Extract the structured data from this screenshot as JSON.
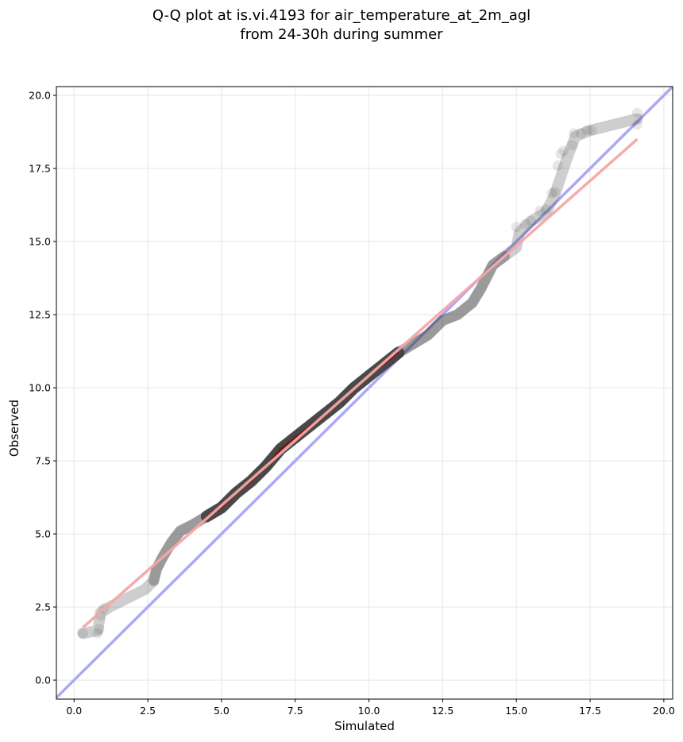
{
  "chart_data": {
    "type": "scatter",
    "title_lines": [
      "Q-Q plot at is.vi.4193 for air_temperature_at_2m_agl",
      "from 24-30h during summer"
    ],
    "xlabel": "Simulated",
    "ylabel": "Observed",
    "xlim": [
      -0.6,
      20.3
    ],
    "ylim": [
      -0.65,
      20.3
    ],
    "xticks": [
      0.0,
      2.5,
      5.0,
      7.5,
      10.0,
      12.5,
      15.0,
      17.5,
      20.0
    ],
    "yticks": [
      0.0,
      2.5,
      5.0,
      7.5,
      10.0,
      12.5,
      15.0,
      17.5,
      20.0
    ],
    "xtick_labels": [
      "0.0",
      "2.5",
      "5.0",
      "7.5",
      "10.0",
      "12.5",
      "15.0",
      "17.5",
      "20.0"
    ],
    "ytick_labels": [
      "0.0",
      "2.5",
      "5.0",
      "7.5",
      "10.0",
      "12.5",
      "15.0",
      "17.5",
      "20.0"
    ],
    "grid": true,
    "reference_line": {
      "x": [
        -0.6,
        20.3
      ],
      "y": [
        -0.6,
        20.3
      ],
      "color": "#a9a9f5"
    },
    "fit_line": {
      "x": [
        0.3,
        19.1
      ],
      "y": [
        1.8,
        18.5
      ],
      "color": "#f4a6a6"
    },
    "quantile_curve": {
      "x": [
        0.3,
        0.8,
        0.9,
        1.2,
        1.6,
        2.0,
        2.4,
        2.7,
        2.8,
        3.0,
        3.3,
        3.6,
        4.0,
        4.5,
        5.0,
        5.5,
        6.0,
        6.5,
        7.0,
        7.5,
        8.0,
        8.5,
        9.0,
        9.5,
        10.0,
        10.5,
        11.0,
        11.5,
        12.0,
        12.5,
        13.0,
        13.5,
        13.8,
        14.2,
        14.6,
        15.0,
        15.1,
        15.5,
        16.0,
        16.3,
        16.7,
        17.0,
        17.5,
        19.1
      ],
      "y": [
        1.6,
        1.7,
        2.3,
        2.5,
        2.7,
        2.9,
        3.1,
        3.4,
        3.8,
        4.2,
        4.7,
        5.1,
        5.3,
        5.6,
        5.9,
        6.4,
        6.8,
        7.3,
        7.9,
        8.3,
        8.7,
        9.1,
        9.5,
        10.0,
        10.4,
        10.8,
        11.2,
        11.5,
        11.8,
        12.3,
        12.5,
        12.9,
        13.4,
        14.2,
        14.5,
        14.8,
        15.3,
        15.7,
        16.0,
        16.6,
        17.8,
        18.6,
        18.8,
        19.2
      ]
    },
    "points": [
      {
        "x": 0.3,
        "y": 1.6,
        "opacity": 0.12
      },
      {
        "x": 0.8,
        "y": 1.6,
        "opacity": 0.12
      },
      {
        "x": 0.85,
        "y": 1.75,
        "opacity": 0.12
      },
      {
        "x": 0.9,
        "y": 2.2,
        "opacity": 0.12
      },
      {
        "x": 1.0,
        "y": 2.45,
        "opacity": 0.12
      },
      {
        "x": 15.0,
        "y": 15.5,
        "opacity": 0.12
      },
      {
        "x": 15.3,
        "y": 15.6,
        "opacity": 0.12
      },
      {
        "x": 15.5,
        "y": 15.7,
        "opacity": 0.12
      },
      {
        "x": 15.8,
        "y": 16.05,
        "opacity": 0.12
      },
      {
        "x": 16.0,
        "y": 16.1,
        "opacity": 0.12
      },
      {
        "x": 16.2,
        "y": 16.65,
        "opacity": 0.12
      },
      {
        "x": 16.3,
        "y": 16.7,
        "opacity": 0.12
      },
      {
        "x": 16.4,
        "y": 17.6,
        "opacity": 0.12
      },
      {
        "x": 16.5,
        "y": 18.0,
        "opacity": 0.12
      },
      {
        "x": 16.6,
        "y": 18.1,
        "opacity": 0.12
      },
      {
        "x": 16.9,
        "y": 18.3,
        "opacity": 0.12
      },
      {
        "x": 16.95,
        "y": 18.7,
        "opacity": 0.12
      },
      {
        "x": 17.2,
        "y": 18.7,
        "opacity": 0.12
      },
      {
        "x": 17.4,
        "y": 18.8,
        "opacity": 0.12
      },
      {
        "x": 17.55,
        "y": 18.8,
        "opacity": 0.12
      },
      {
        "x": 19.1,
        "y": 19.0,
        "opacity": 0.12
      },
      {
        "x": 19.1,
        "y": 19.4,
        "opacity": 0.12
      }
    ],
    "colors": {
      "points": "#3a3a3a",
      "center_line": "#8b0000",
      "grid": "#e6e6e6"
    }
  }
}
